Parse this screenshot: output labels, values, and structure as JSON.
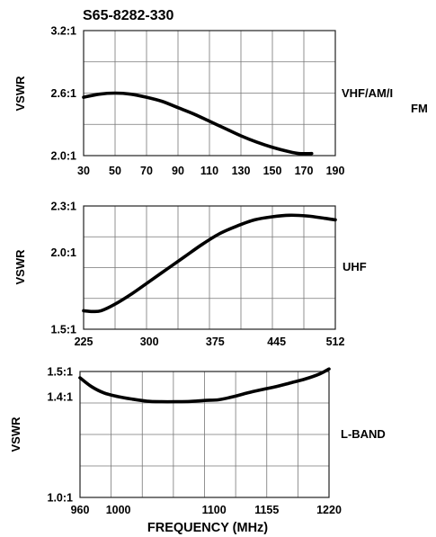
{
  "title": "S65-8282-330",
  "xlabel": "FREQUENCY (MHz)",
  "chart_data": [
    {
      "type": "line",
      "band_label": "VHF/AM/I",
      "band_label_extra": "FM",
      "ylabel": "VSWR",
      "xlim": [
        30,
        190
      ],
      "ylim": [
        2.0,
        3.2
      ],
      "x_ticks": [
        30,
        50,
        70,
        90,
        110,
        130,
        150,
        170,
        190
      ],
      "x_tick_labels": [
        "30",
        "50",
        "70",
        "90",
        "110",
        "130",
        "150",
        "170",
        "190"
      ],
      "y_ticks": [
        2.0,
        2.6,
        3.2
      ],
      "y_tick_labels": [
        "2.0:1",
        "2.6:1",
        "3.2:1"
      ],
      "y_grid_divisions": 4,
      "x_grid_divisions": 8,
      "series": [
        {
          "x": [
            30,
            40,
            50,
            60,
            70,
            80,
            90,
            100,
            110,
            120,
            130,
            140,
            150,
            160,
            167,
            175
          ],
          "y": [
            2.56,
            2.59,
            2.6,
            2.59,
            2.56,
            2.52,
            2.46,
            2.4,
            2.33,
            2.26,
            2.19,
            2.13,
            2.08,
            2.04,
            2.02,
            2.02
          ]
        }
      ]
    },
    {
      "type": "line",
      "band_label": "UHF",
      "ylabel": "VSWR",
      "xlim": [
        225,
        512
      ],
      "ylim": [
        1.5,
        2.3
      ],
      "x_ticks": [
        225,
        300,
        375,
        445,
        512
      ],
      "x_tick_labels": [
        "225",
        "300",
        "375",
        "445",
        "512"
      ],
      "y_ticks": [
        1.5,
        2.0,
        2.3
      ],
      "y_tick_labels": [
        "1.5:1",
        "2.0:1",
        "2.3:1"
      ],
      "y_grid_divisions": 4,
      "x_grid_divisions": 8,
      "series": [
        {
          "x": [
            225,
            235,
            245,
            260,
            280,
            300,
            320,
            340,
            360,
            380,
            400,
            420,
            440,
            460,
            480,
            500,
            512
          ],
          "y": [
            1.62,
            1.615,
            1.62,
            1.66,
            1.73,
            1.81,
            1.89,
            1.97,
            2.05,
            2.12,
            2.17,
            2.21,
            2.23,
            2.24,
            2.235,
            2.22,
            2.21
          ]
        }
      ]
    },
    {
      "type": "line",
      "band_label": "L-BAND",
      "ylabel": "VSWR",
      "xlim": [
        960,
        1220
      ],
      "ylim": [
        1.0,
        1.5
      ],
      "x_ticks": [
        960,
        1000,
        1100,
        1155,
        1220
      ],
      "x_tick_labels": [
        "960",
        "1000",
        "1100",
        "1155",
        "1220"
      ],
      "y_ticks": [
        1.0,
        1.4,
        1.5
      ],
      "y_tick_labels": [
        "1.0:1",
        "1.4:1",
        "1.5:1"
      ],
      "y_grid_divisions": 4,
      "x_grid_divisions": 8,
      "series": [
        {
          "x": [
            960,
            972,
            985,
            1000,
            1015,
            1030,
            1045,
            1060,
            1075,
            1090,
            1105,
            1120,
            1135,
            1150,
            1165,
            1180,
            1195,
            1210,
            1220
          ],
          "y": [
            1.475,
            1.44,
            1.415,
            1.4,
            1.39,
            1.382,
            1.38,
            1.38,
            1.381,
            1.385,
            1.388,
            1.4,
            1.415,
            1.428,
            1.44,
            1.455,
            1.47,
            1.49,
            1.51
          ]
        }
      ]
    }
  ]
}
